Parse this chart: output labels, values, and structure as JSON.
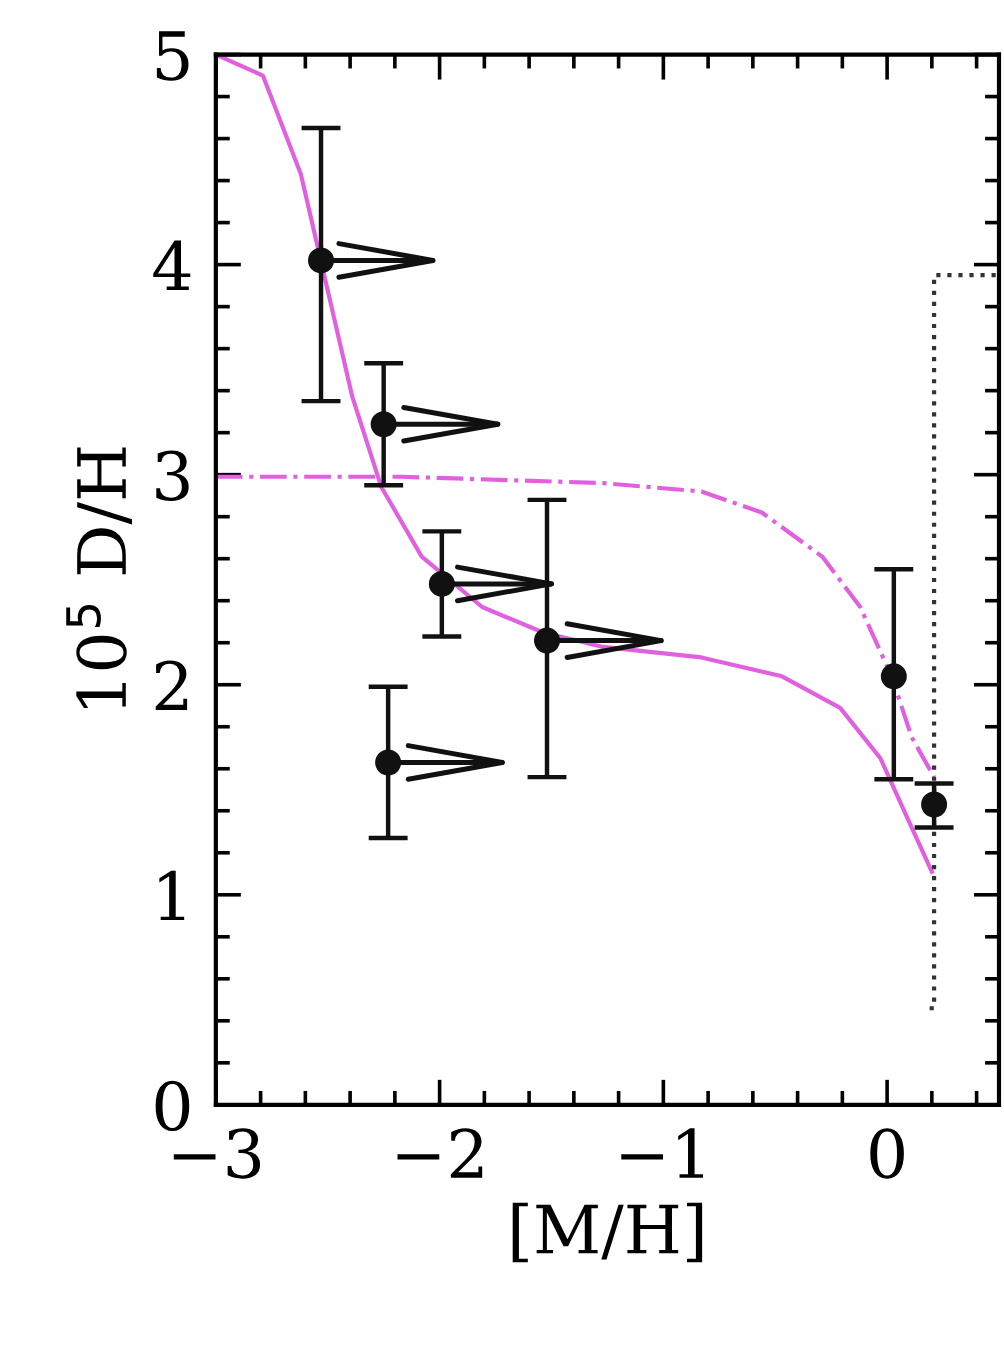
{
  "chart_data": {
    "type": "scatter",
    "xlabel": "[M/H]",
    "ylabel": "10$^{5}$ D/H",
    "xlim": [
      -3,
      0.5
    ],
    "ylim": [
      0,
      5
    ],
    "xticks": [
      -3,
      {
        "value": -2.8,
        "label": null
      },
      {
        "value": -2.6,
        "label": null
      },
      {
        "value": -2.4,
        "label": null
      },
      {
        "value": -2.2,
        "label": null
      },
      -2,
      {
        "value": -1.8,
        "label": null
      },
      {
        "value": -1.6,
        "label": null
      },
      {
        "value": -1.4,
        "label": null
      },
      {
        "value": -1.2,
        "label": null
      },
      -1,
      {
        "value": -0.8,
        "label": null
      },
      {
        "value": -0.6,
        "label": null
      },
      {
        "value": -0.4,
        "label": null
      },
      {
        "value": -0.2,
        "label": null
      },
      0,
      {
        "value": 0.2,
        "label": null
      },
      {
        "value": 0.4,
        "label": null
      }
    ],
    "yticks": [
      0,
      {
        "value": 0.2,
        "label": null
      },
      {
        "value": 0.4,
        "label": null
      },
      {
        "value": 0.6,
        "label": null
      },
      {
        "value": 0.8,
        "label": null
      },
      1,
      {
        "value": 1.2,
        "label": null
      },
      {
        "value": 1.4,
        "label": null
      },
      {
        "value": 1.6,
        "label": null
      },
      {
        "value": 1.8,
        "label": null
      },
      2,
      {
        "value": 2.2,
        "label": null
      },
      {
        "value": 2.4,
        "label": null
      },
      {
        "value": 2.6,
        "label": null
      },
      {
        "value": 2.8,
        "label": null
      },
      3,
      {
        "value": 3.2,
        "label": null
      },
      {
        "value": 3.4,
        "label": null
      },
      {
        "value": 3.6,
        "label": null
      },
      {
        "value": 3.8,
        "label": null
      },
      4,
      {
        "value": 4.2,
        "label": null
      },
      {
        "value": 4.4,
        "label": null
      },
      {
        "value": 4.6,
        "label": null
      },
      {
        "value": 4.8,
        "label": null
      },
      5
    ],
    "grid": false,
    "legend": false,
    "series": [
      {
        "type": "line",
        "color": "#e060e0",
        "line_style": "solid",
        "marker": "none",
        "x": [
          -3,
          -2.79,
          -2.62,
          -2.39,
          -2.26,
          -2.08,
          -1.81,
          -1.54,
          -1.27,
          -0.83,
          -0.47,
          -0.21,
          -0.03,
          0.11,
          0.2
        ],
        "values": [
          5,
          4.9,
          4.43,
          3.37,
          2.94,
          2.61,
          2.37,
          2.25,
          2.18,
          2.13,
          2.04,
          1.89,
          1.65,
          1.32,
          1.11
        ]
      },
      {
        "type": "line",
        "color": "#e060e0",
        "line_style": "dashdot",
        "marker": "none",
        "x": [
          -3,
          -2.17,
          -1.27,
          -0.83,
          -0.56,
          -0.29,
          -0.12,
          0.02,
          0.11,
          0.21
        ],
        "values": [
          2.99,
          2.99,
          2.96,
          2.92,
          2.82,
          2.61,
          2.37,
          2.04,
          1.75,
          1.56
        ]
      },
      {
        "type": "line",
        "color": "#333333",
        "line_style": "dotted",
        "marker": "none",
        "x": [
          0.19,
          0.21,
          0.21,
          0.5
        ],
        "values": [
          0.46,
          0.46,
          3.95,
          3.95
        ]
      },
      {
        "type": "scatter",
        "color": "#111111",
        "marker": "circle",
        "x": [
          -2.53,
          -2.25,
          -1.99,
          -1.52,
          -2.23,
          0.03,
          0.21
        ],
        "values": [
          4.02,
          3.24,
          2.48,
          2.21,
          1.63,
          2.04,
          1.43
        ],
        "errors": [
          [
            3.35,
            4.65
          ],
          [
            2.95,
            3.53
          ],
          [
            2.23,
            2.73
          ],
          [
            1.56,
            2.88
          ],
          [
            1.27,
            1.99
          ],
          [
            1.55,
            2.55
          ],
          [
            1.32,
            1.53
          ]
        ],
        "xerrors": [
          [
            -2.53,
            -2.03
          ],
          [
            -2.25,
            -1.74
          ],
          [
            -1.99,
            -1.5
          ],
          [
            -1.52,
            -1.01
          ],
          [
            -2.23,
            -1.72
          ],
          null,
          null
        ]
      }
    ]
  }
}
